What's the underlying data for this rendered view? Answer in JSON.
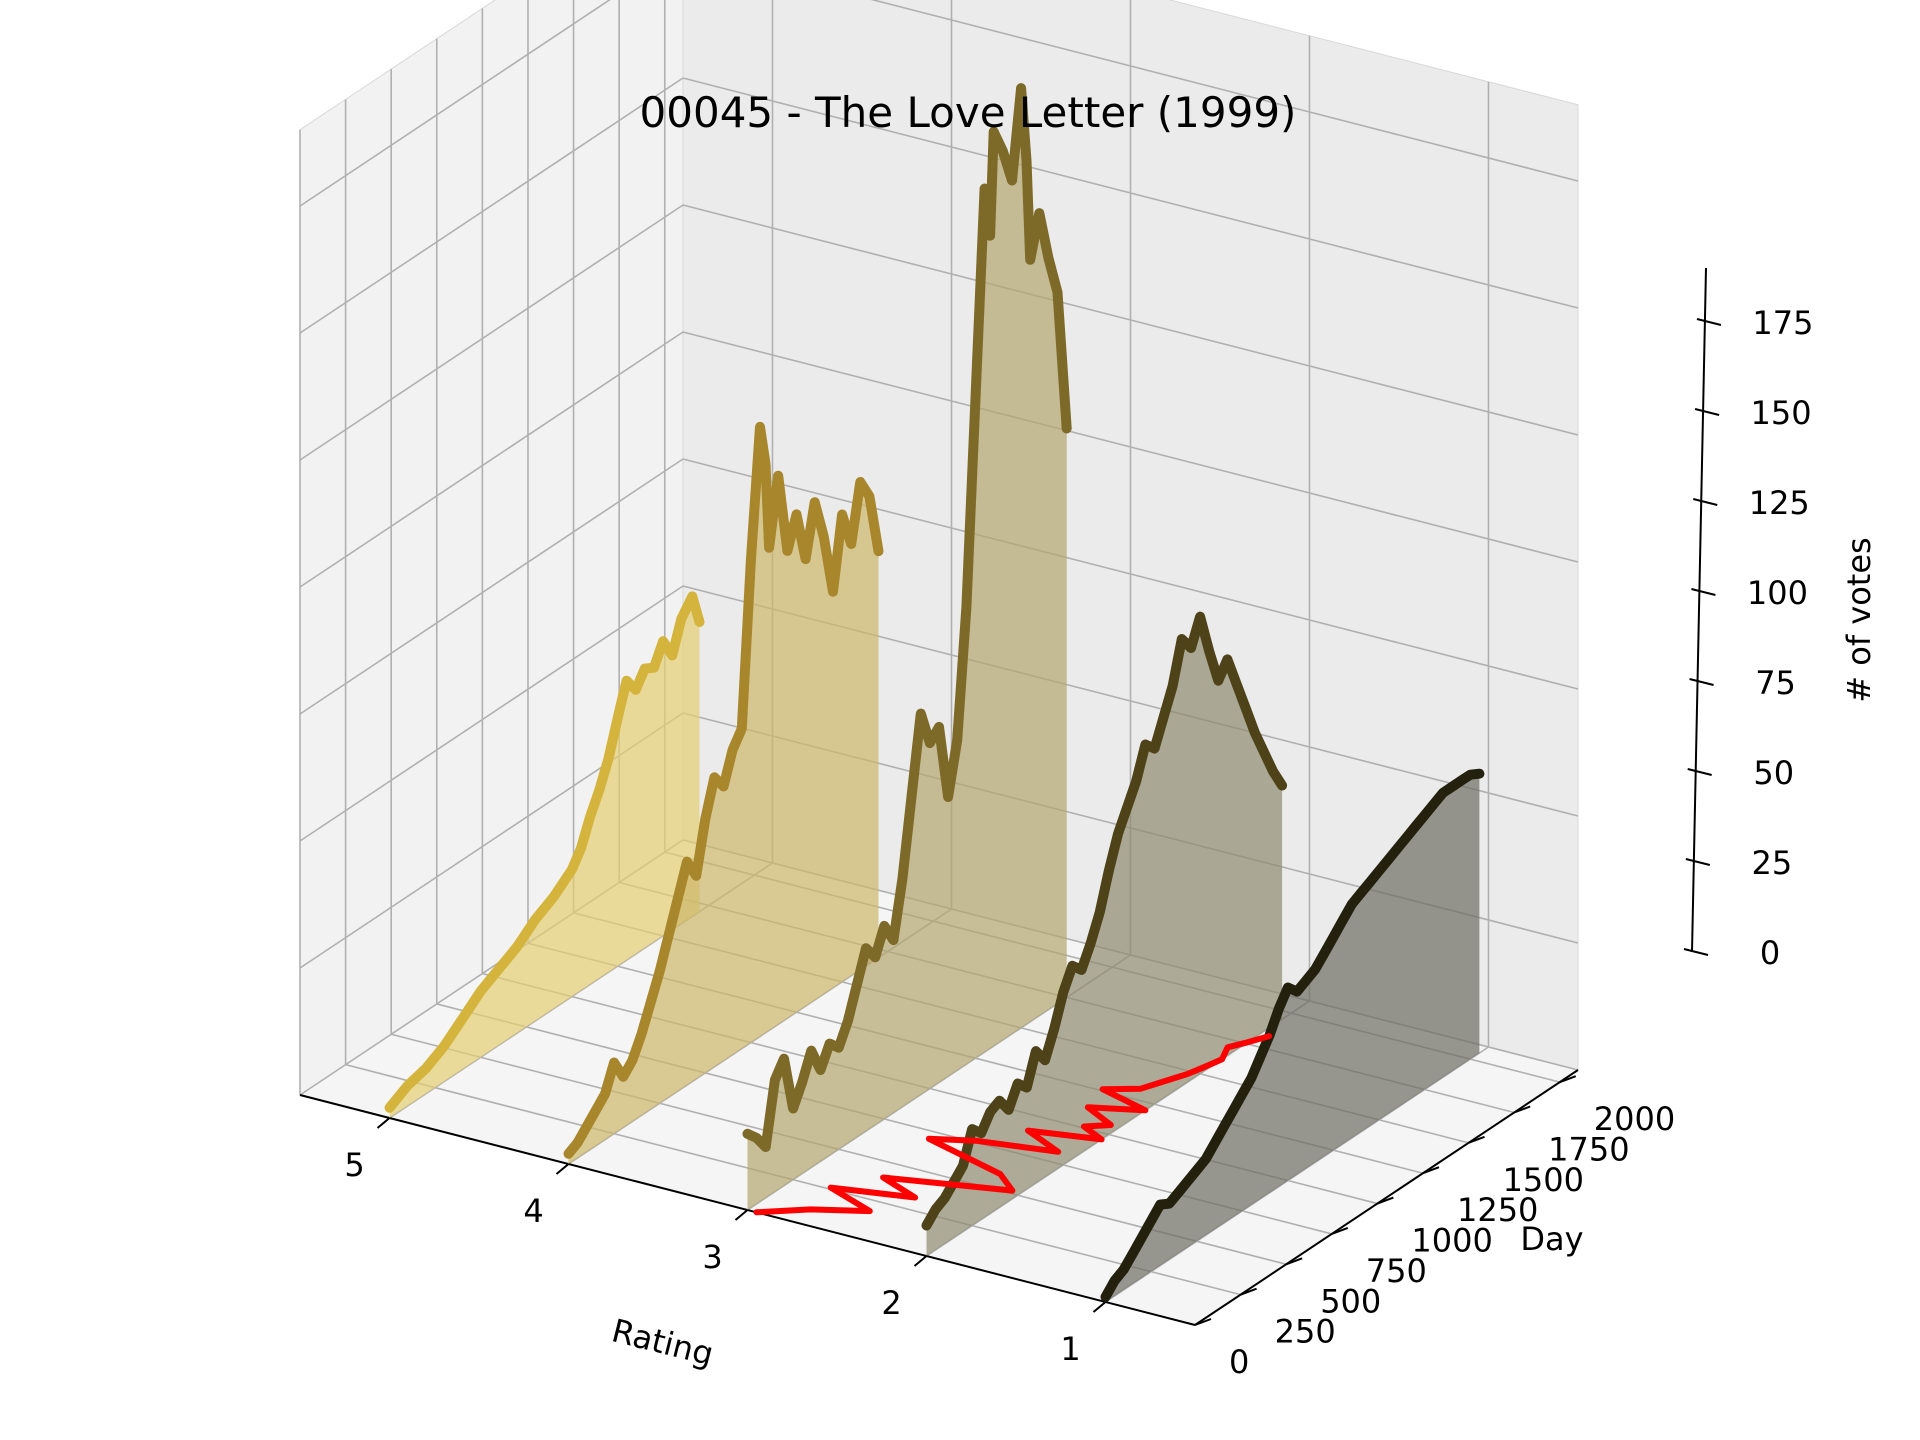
{
  "chart_data": {
    "type": "line",
    "title": "00045 - The Love Letter (1999)",
    "xlabel": "Rating",
    "ylabel": "Day",
    "zlabel": "# of votes",
    "rating_ticks": [
      5,
      4,
      3,
      2,
      1
    ],
    "day_ticks": [
      0,
      250,
      500,
      750,
      1000,
      1250,
      1500,
      1750,
      2000
    ],
    "votes_ticks": [
      0,
      25,
      50,
      75,
      100,
      125,
      150,
      175
    ],
    "day_range": [
      0,
      2100
    ],
    "votes_range": [
      0,
      185
    ],
    "grid": true,
    "series": [
      {
        "rating": 5,
        "color": "#d4b43c",
        "fill": "#e6cf73",
        "points": [
          [
            0,
            2
          ],
          [
            100,
            4
          ],
          [
            200,
            5
          ],
          [
            300,
            7
          ],
          [
            400,
            10
          ],
          [
            500,
            13
          ],
          [
            600,
            15
          ],
          [
            700,
            17
          ],
          [
            800,
            20
          ],
          [
            900,
            22
          ],
          [
            1000,
            25
          ],
          [
            1050,
            28
          ],
          [
            1100,
            33
          ],
          [
            1150,
            37
          ],
          [
            1200,
            42
          ],
          [
            1260,
            50
          ],
          [
            1300,
            55
          ],
          [
            1350,
            52
          ],
          [
            1400,
            55
          ],
          [
            1450,
            54
          ],
          [
            1500,
            58
          ],
          [
            1550,
            54
          ],
          [
            1600,
            60
          ],
          [
            1660,
            63
          ],
          [
            1700,
            57
          ]
        ]
      },
      {
        "rating": 4,
        "color": "#a8862c",
        "fill": "#cdb66a",
        "points": [
          [
            0,
            2
          ],
          [
            50,
            3
          ],
          [
            100,
            5
          ],
          [
            150,
            7
          ],
          [
            200,
            9
          ],
          [
            250,
            14
          ],
          [
            300,
            10
          ],
          [
            350,
            12
          ],
          [
            400,
            16
          ],
          [
            450,
            21
          ],
          [
            500,
            26
          ],
          [
            550,
            32
          ],
          [
            600,
            38
          ],
          [
            650,
            44
          ],
          [
            700,
            40
          ],
          [
            750,
            50
          ],
          [
            800,
            57
          ],
          [
            850,
            54
          ],
          [
            900,
            60
          ],
          [
            950,
            63
          ],
          [
            1000,
            95
          ],
          [
            1050,
            120
          ],
          [
            1080,
            112
          ],
          [
            1100,
            95
          ],
          [
            1150,
            108
          ],
          [
            1200,
            92
          ],
          [
            1250,
            98
          ],
          [
            1300,
            88
          ],
          [
            1350,
            98
          ],
          [
            1400,
            90
          ],
          [
            1450,
            78
          ],
          [
            1500,
            92
          ],
          [
            1550,
            85
          ],
          [
            1600,
            96
          ],
          [
            1650,
            92
          ],
          [
            1700,
            80
          ]
        ]
      },
      {
        "rating": 3,
        "color": "#7d6a28",
        "fill": "#b4a56e",
        "points": [
          [
            0,
            15
          ],
          [
            50,
            13
          ],
          [
            100,
            10
          ],
          [
            150,
            22
          ],
          [
            200,
            25
          ],
          [
            250,
            14
          ],
          [
            300,
            18
          ],
          [
            350,
            23
          ],
          [
            400,
            18
          ],
          [
            450,
            22
          ],
          [
            500,
            20
          ],
          [
            550,
            24
          ],
          [
            600,
            30
          ],
          [
            650,
            36
          ],
          [
            700,
            33
          ],
          [
            750,
            38
          ],
          [
            800,
            34
          ],
          [
            850,
            45
          ],
          [
            900,
            60
          ],
          [
            950,
            75
          ],
          [
            1000,
            68
          ],
          [
            1050,
            70
          ],
          [
            1100,
            55
          ],
          [
            1150,
            65
          ],
          [
            1200,
            90
          ],
          [
            1250,
            130
          ],
          [
            1300,
            170
          ],
          [
            1330,
            160
          ],
          [
            1350,
            180
          ],
          [
            1400,
            175
          ],
          [
            1450,
            168
          ],
          [
            1500,
            185
          ],
          [
            1530,
            170
          ],
          [
            1550,
            150
          ],
          [
            1600,
            158
          ],
          [
            1650,
            148
          ],
          [
            1700,
            140
          ],
          [
            1750,
            112
          ]
        ]
      },
      {
        "rating": 2,
        "color": "#4e4318",
        "fill": "#8f8a6f",
        "points": [
          [
            0,
            6
          ],
          [
            50,
            8
          ],
          [
            100,
            9
          ],
          [
            150,
            11
          ],
          [
            200,
            13
          ],
          [
            250,
            19
          ],
          [
            300,
            17
          ],
          [
            350,
            20
          ],
          [
            400,
            21
          ],
          [
            450,
            18
          ],
          [
            500,
            22
          ],
          [
            550,
            20
          ],
          [
            600,
            26
          ],
          [
            650,
            23
          ],
          [
            700,
            28
          ],
          [
            750,
            34
          ],
          [
            800,
            38
          ],
          [
            850,
            36
          ],
          [
            900,
            40
          ],
          [
            950,
            45
          ],
          [
            1000,
            52
          ],
          [
            1050,
            58
          ],
          [
            1100,
            62
          ],
          [
            1150,
            66
          ],
          [
            1200,
            72
          ],
          [
            1250,
            70
          ],
          [
            1300,
            75
          ],
          [
            1350,
            80
          ],
          [
            1400,
            88
          ],
          [
            1450,
            85
          ],
          [
            1500,
            90
          ],
          [
            1550,
            82
          ],
          [
            1600,
            75
          ],
          [
            1650,
            78
          ],
          [
            1700,
            72
          ],
          [
            1750,
            66
          ],
          [
            1800,
            60
          ],
          [
            1850,
            55
          ],
          [
            1900,
            50
          ],
          [
            1950,
            46
          ]
        ]
      },
      {
        "rating": 1,
        "color": "#23200e",
        "fill": "#6f6d63",
        "points": [
          [
            0,
            1
          ],
          [
            50,
            3
          ],
          [
            100,
            4
          ],
          [
            150,
            6
          ],
          [
            200,
            8
          ],
          [
            250,
            10
          ],
          [
            300,
            12
          ],
          [
            350,
            11
          ],
          [
            400,
            12
          ],
          [
            450,
            13
          ],
          [
            500,
            14
          ],
          [
            550,
            15
          ],
          [
            600,
            17
          ],
          [
            650,
            19
          ],
          [
            700,
            21
          ],
          [
            750,
            23
          ],
          [
            800,
            25
          ],
          [
            850,
            28
          ],
          [
            900,
            31
          ],
          [
            950,
            35
          ],
          [
            1000,
            38
          ],
          [
            1050,
            36
          ],
          [
            1100,
            37
          ],
          [
            1150,
            38
          ],
          [
            1200,
            40
          ],
          [
            1250,
            42
          ],
          [
            1300,
            44
          ],
          [
            1350,
            46
          ],
          [
            1400,
            47
          ],
          [
            1450,
            48
          ],
          [
            1500,
            49
          ],
          [
            1550,
            50
          ],
          [
            1600,
            51
          ],
          [
            1650,
            52
          ],
          [
            1700,
            53
          ],
          [
            1750,
            54
          ],
          [
            1800,
            55
          ],
          [
            1850,
            56
          ],
          [
            1900,
            56
          ],
          [
            1950,
            56
          ],
          [
            2000,
            56
          ],
          [
            2050,
            55
          ]
        ]
      }
    ],
    "trace": {
      "color": "#ff0000",
      "points": [
        [
          2.95,
          0
        ],
        [
          2.75,
          100
        ],
        [
          2.5,
          180
        ],
        [
          2.8,
          260
        ],
        [
          2.4,
          330
        ],
        [
          2.65,
          400
        ],
        [
          2.3,
          470
        ],
        [
          2.05,
          520
        ],
        [
          2.2,
          600
        ],
        [
          2.7,
          700
        ],
        [
          2.5,
          760
        ],
        [
          2.1,
          820
        ],
        [
          2.35,
          900
        ],
        [
          2.0,
          960
        ],
        [
          2.15,
          1010
        ],
        [
          2.05,
          1060
        ],
        [
          2.25,
          1130
        ],
        [
          2.0,
          1200
        ],
        [
          2.3,
          1260
        ],
        [
          2.15,
          1320
        ],
        [
          2.1,
          1400
        ],
        [
          2.05,
          1480
        ],
        [
          2.02,
          1560
        ],
        [
          2.0,
          1620
        ],
        [
          2.05,
          1700
        ],
        [
          2.0,
          1760
        ],
        [
          1.95,
          1830
        ]
      ]
    }
  }
}
